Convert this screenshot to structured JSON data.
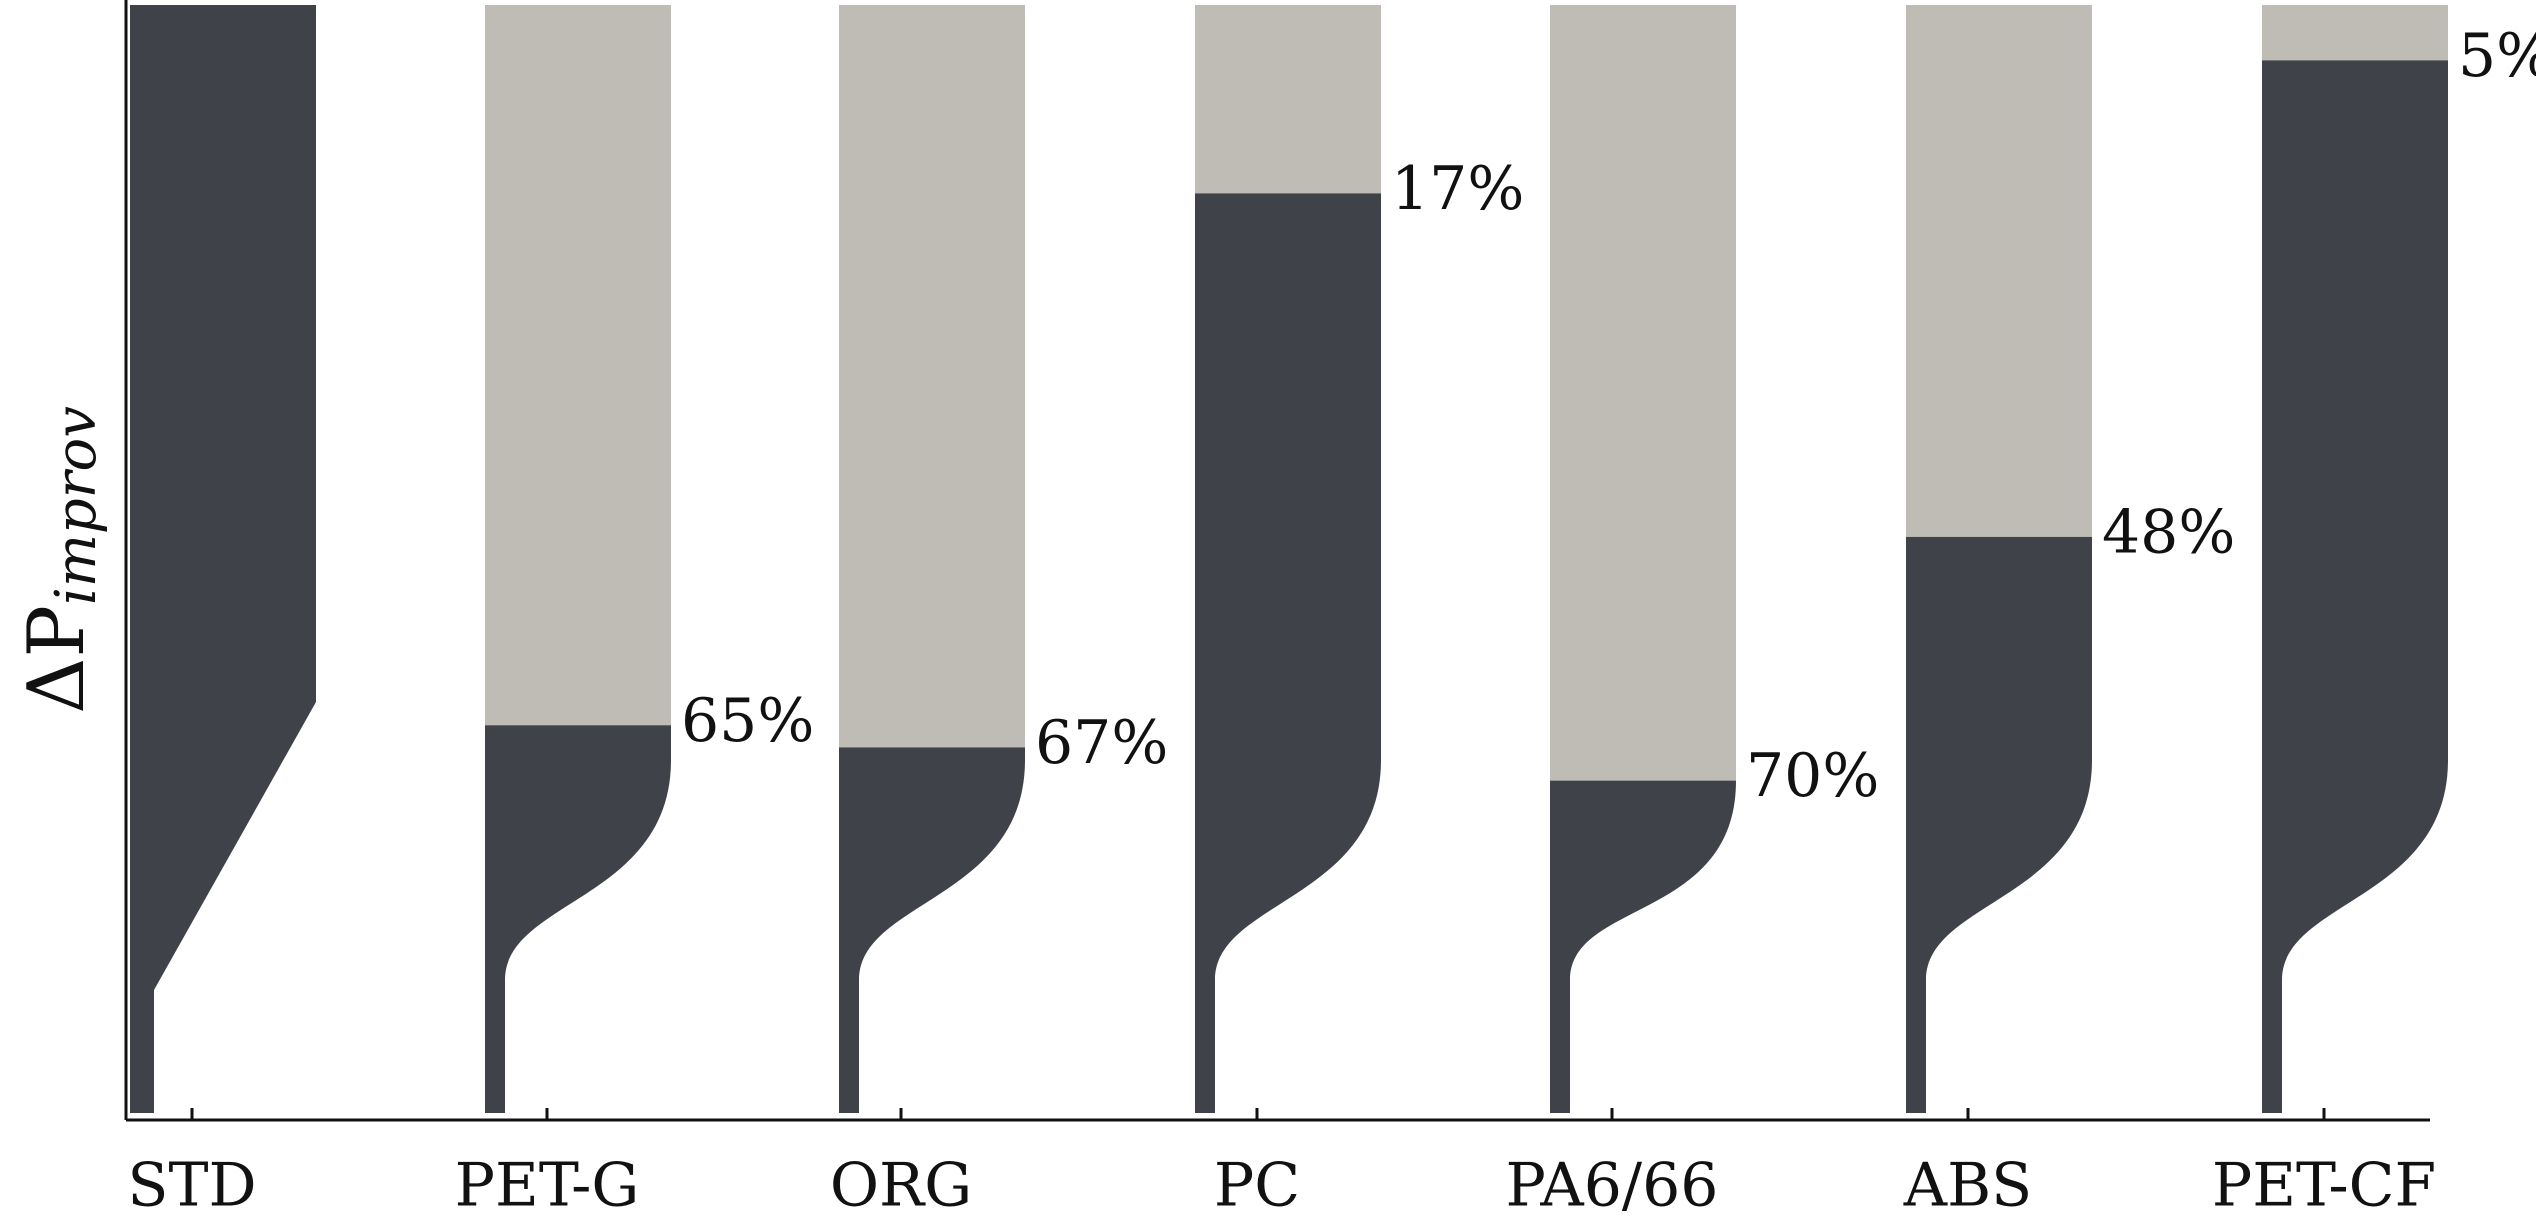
{
  "chart_data": {
    "type": "nozzle",
    "ylabel": {
      "main": "ΔP",
      "sub": "improv"
    },
    "categories": [
      "STD",
      "PET-G",
      "ORG",
      "PC",
      "PA6/66",
      "ABS",
      "PET-CF"
    ],
    "values": [
      null,
      65,
      67,
      17,
      70,
      48,
      5
    ],
    "value_labels": [
      null,
      "65%",
      "67%",
      "17%",
      "70%",
      "48%",
      "5%"
    ],
    "ylim": [
      0,
      100
    ],
    "y_inverted": true,
    "colors": {
      "improvement": "#bfbcb5",
      "profile": "#3f4249"
    }
  }
}
